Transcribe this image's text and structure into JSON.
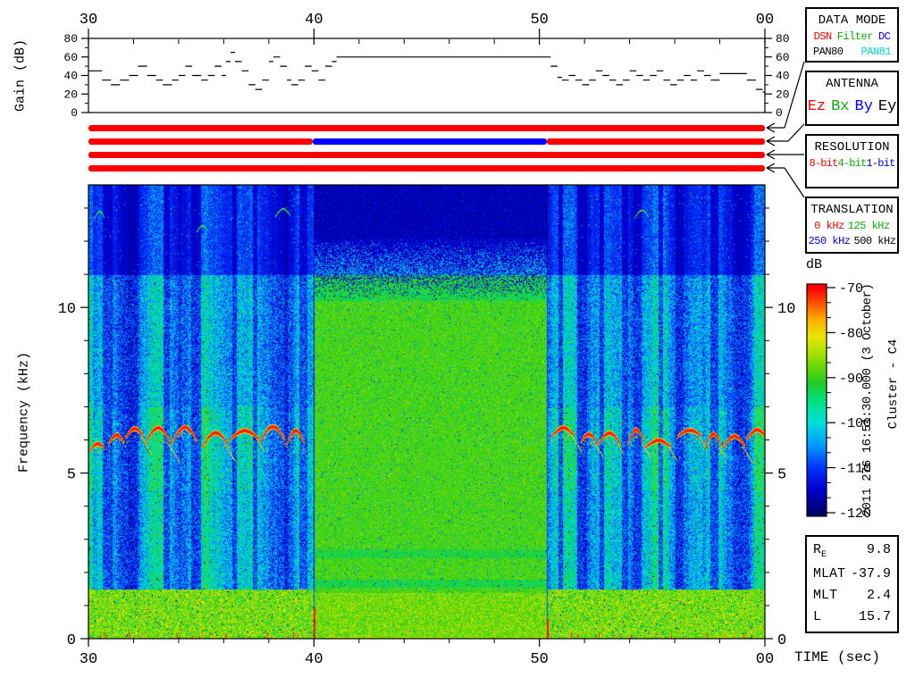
{
  "side_text": {
    "timestamp": "2011 276 16:51:30.000 (3 October)",
    "spacecraft": "Cluster - C4"
  },
  "palette": {
    "red": "#ff0000",
    "green": "#00b400",
    "blue": "#0000ff",
    "cyan": "#00d8d8",
    "black": "#000000"
  },
  "panels": {
    "data_mode": {
      "title": "DATA MODE",
      "rows": [
        [
          {
            "text": "DSN",
            "color": "red"
          },
          {
            "text": "Filter",
            "color": "green"
          },
          {
            "text": "DC",
            "color": "blue"
          }
        ],
        [
          {
            "text": "PAN80",
            "color": "black"
          },
          {
            "text": "PAN81",
            "color": "cyan"
          }
        ]
      ]
    },
    "antenna": {
      "title": "ANTENNA",
      "rows": [
        [
          {
            "text": "Ez",
            "color": "red"
          },
          {
            "text": "Bx",
            "color": "green"
          },
          {
            "text": "By",
            "color": "blue"
          },
          {
            "text": "Ey",
            "color": "black"
          }
        ]
      ]
    },
    "resolution": {
      "title": "RESOLUTION",
      "rows": [
        [
          {
            "text": "8-bit",
            "color": "red"
          },
          {
            "text": "4-bit",
            "color": "green"
          },
          {
            "text": "1-bit",
            "color": "blue"
          }
        ]
      ]
    },
    "translation": {
      "title": "TRANSLATION",
      "rows": [
        [
          {
            "text": "0 kHz",
            "color": "red"
          },
          {
            "text": "125 kHz",
            "color": "green"
          }
        ],
        [
          {
            "text": "250 kHz",
            "color": "blue"
          },
          {
            "text": "500 kHz",
            "color": "black"
          }
        ]
      ]
    }
  },
  "status_bars": {
    "x_range_sec": [
      30,
      60
    ],
    "bars": [
      {
        "name": "data-mode-bar",
        "linked_panel": "DATA MODE",
        "segments": [
          {
            "t0": 30,
            "t1": 60,
            "color": "#ff0000",
            "value": "DSN"
          }
        ]
      },
      {
        "name": "antenna-bar",
        "linked_panel": "ANTENNA",
        "segments": [
          {
            "t0": 30,
            "t1": 39.95,
            "color": "#ff0000",
            "value": "Ez"
          },
          {
            "t0": 39.95,
            "t1": 50.35,
            "color": "#0000ff",
            "value": "By"
          },
          {
            "t0": 50.35,
            "t1": 60,
            "color": "#ff0000",
            "value": "Ez"
          }
        ]
      },
      {
        "name": "resolution-bar",
        "linked_panel": "RESOLUTION",
        "segments": [
          {
            "t0": 30,
            "t1": 60,
            "color": "#ff0000",
            "value": "8-bit"
          }
        ]
      },
      {
        "name": "translation-bar",
        "linked_panel": "TRANSLATION",
        "segments": [
          {
            "t0": 30,
            "t1": 60,
            "color": "#ff0000",
            "value": "0 kHz"
          }
        ]
      }
    ]
  },
  "ephemeris": {
    "rows": [
      {
        "label": "R",
        "sub": "E",
        "value": "9.8"
      },
      {
        "label": "MLAT",
        "sub": "",
        "value": "-37.9"
      },
      {
        "label": "MLT",
        "sub": "",
        "value": "2.4"
      },
      {
        "label": "L",
        "sub": "",
        "value": "15.7"
      }
    ]
  },
  "chart_data": [
    {
      "type": "line",
      "name": "agc-gain",
      "ylabel": "Gain (dB)",
      "ylim": [
        0,
        80
      ],
      "xlim_sec": [
        30,
        60
      ],
      "yticks": [
        0,
        20,
        40,
        60,
        80
      ],
      "xticks": [
        {
          "t": 30,
          "label": "30"
        },
        {
          "t": 40,
          "label": "40"
        },
        {
          "t": 50,
          "label": "50"
        },
        {
          "t": 60,
          "label": "00"
        }
      ],
      "step": true,
      "points": [
        [
          30,
          45
        ],
        [
          30.6,
          35
        ],
        [
          31,
          30
        ],
        [
          31.4,
          35
        ],
        [
          31.8,
          40
        ],
        [
          32.2,
          50
        ],
        [
          32.6,
          40
        ],
        [
          33,
          35
        ],
        [
          33.3,
          30
        ],
        [
          33.7,
          35
        ],
        [
          34,
          40
        ],
        [
          34.3,
          50
        ],
        [
          34.6,
          40
        ],
        [
          35,
          35
        ],
        [
          35.3,
          40
        ],
        [
          35.6,
          50
        ],
        [
          35.9,
          40
        ],
        [
          36.1,
          55
        ],
        [
          36.3,
          65
        ],
        [
          36.5,
          55
        ],
        [
          36.8,
          45
        ],
        [
          37.1,
          30
        ],
        [
          37.4,
          25
        ],
        [
          37.7,
          35
        ],
        [
          38,
          55
        ],
        [
          38.2,
          60
        ],
        [
          38.5,
          50
        ],
        [
          38.8,
          35
        ],
        [
          39,
          30
        ],
        [
          39.3,
          35
        ],
        [
          39.6,
          50
        ],
        [
          39.9,
          45
        ],
        [
          40.2,
          35
        ],
        [
          40.5,
          50
        ],
        [
          40.8,
          55
        ],
        [
          41,
          60
        ],
        [
          50.3,
          60
        ],
        [
          50.5,
          50
        ],
        [
          50.8,
          38
        ],
        [
          51,
          35
        ],
        [
          51.3,
          40
        ],
        [
          51.6,
          35
        ],
        [
          51.9,
          30
        ],
        [
          52.2,
          35
        ],
        [
          52.5,
          45
        ],
        [
          52.8,
          40
        ],
        [
          53.1,
          35
        ],
        [
          53.4,
          30
        ],
        [
          53.7,
          35
        ],
        [
          54,
          45
        ],
        [
          54.3,
          40
        ],
        [
          54.6,
          35
        ],
        [
          54.9,
          40
        ],
        [
          55.2,
          45
        ],
        [
          55.5,
          35
        ],
        [
          55.8,
          30
        ],
        [
          56.1,
          35
        ],
        [
          56.4,
          40
        ],
        [
          56.7,
          35
        ],
        [
          57,
          45
        ],
        [
          57.3,
          40
        ],
        [
          57.6,
          35
        ],
        [
          58,
          42
        ],
        [
          58.8,
          42
        ],
        [
          59.2,
          35
        ],
        [
          59.6,
          25
        ],
        [
          59.9,
          22
        ]
      ]
    },
    {
      "type": "heatmap",
      "name": "wbd-spectrogram",
      "xlabel": "TIME (sec)",
      "ylabel": "Frequency (kHz)",
      "xlim_sec": [
        30,
        60
      ],
      "ylim_khz": [
        0,
        13.7
      ],
      "yticks": [
        {
          "f": 0,
          "label": "0"
        },
        {
          "f": 5,
          "label": "5"
        },
        {
          "f": 10,
          "label": "10"
        }
      ],
      "xticks": [
        {
          "t": 30,
          "label": "30"
        },
        {
          "t": 40,
          "label": "40"
        },
        {
          "t": 50,
          "label": "50"
        },
        {
          "t": 60,
          "label": "00"
        }
      ],
      "colorbar": {
        "label": "dB",
        "min": -120,
        "max": -70,
        "ticks": [
          "-70",
          "-80",
          "-90",
          "-100",
          "-110",
          "-120"
        ]
      },
      "regions": [
        {
          "name": "burst-1",
          "t": [
            30,
            40
          ],
          "character": "blue/cyan broadband turbulence with dark dropout stripes, intense red chorus tones near 6 kHz, bright green band below 1.5 kHz, weak green risers near 13 kHz"
        },
        {
          "name": "receiver-noise",
          "t": [
            40,
            50.35
          ],
          "character": "uniform green noise floor about -95 dB on By antenna at fixed 60 dB gain, dark navy above about 11.3 kHz"
        },
        {
          "name": "burst-2",
          "t": [
            50.35,
            60
          ],
          "character": "same as burst-1: red chorus band near 6 kHz, cyan columns, dark stripes, green band below 1.5 kHz"
        }
      ],
      "chorus_band_khz": [
        5,
        7
      ],
      "bottom_band_khz": [
        0,
        1.5
      ],
      "dark_top_khz": 11.2
    }
  ]
}
